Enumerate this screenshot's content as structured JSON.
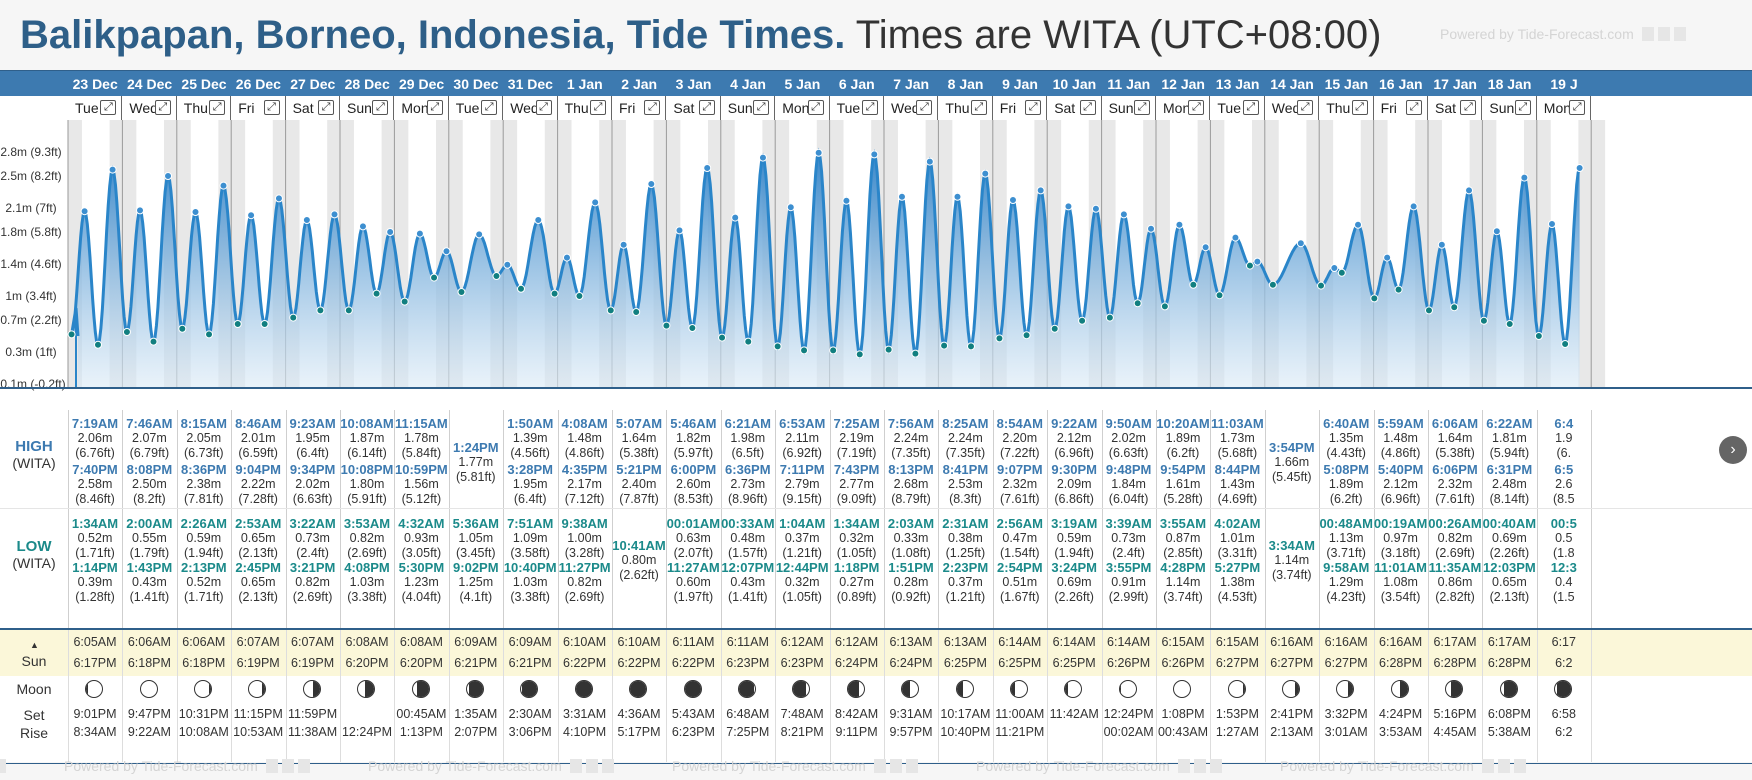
{
  "header": {
    "place": "Balikpapan, Borneo, Indonesia, Tide Times.",
    "tz_note": "Times are WITA (UTC+08:00)",
    "powered": "Powered by Tide-Forecast.com",
    "powered_bottom": "Powered by Tide-Forecast.com"
  },
  "colors": {
    "brand": "#2e5f88",
    "datebar": "#3d7ab0",
    "high": "#3d7ab0",
    "low": "#1b8a8a",
    "water": "#3f8ccc",
    "sunrow": "#fbf7d9"
  },
  "labels": {
    "high": "HIGH",
    "low": "LOW",
    "tz": "(WITA)",
    "sun": "Sun",
    "moon": "Moon",
    "set": "Set",
    "rise": "Rise"
  },
  "dates": [
    "23 Dec",
    "24 Dec",
    "25 Dec",
    "26 Dec",
    "27 Dec",
    "28 Dec",
    "29 Dec",
    "30 Dec",
    "31 Dec",
    "1 Jan",
    "2 Jan",
    "3 Jan",
    "4 Jan",
    "5 Jan",
    "6 Jan",
    "7 Jan",
    "8 Jan",
    "9 Jan",
    "10 Jan",
    "11 Jan",
    "12 Jan",
    "13 Jan",
    "14 Jan",
    "15 Jan",
    "16 Jan",
    "17 Jan",
    "18 Jan",
    "19 J"
  ],
  "weekdays": [
    "Tue",
    "Wed",
    "Thu",
    "Fri",
    "Sat",
    "Sun",
    "Mon",
    "Tue",
    "Wed",
    "Thu",
    "Fri",
    "Sat",
    "Sun",
    "Mon",
    "Tue",
    "Wed",
    "Thu",
    "Fri",
    "Sat",
    "Sun",
    "Mon",
    "Tue",
    "Wed",
    "Thu",
    "Fri",
    "Sat",
    "Sun",
    "Mon"
  ],
  "chart_data": {
    "type": "area",
    "ylabel_ticks": [
      "2.8m (9.3ft)",
      "2.5m (8.2ft)",
      "2.1m (7ft)",
      "1.8m (5.8ft)",
      "1.4m (4.6ft)",
      "1m (3.4ft)",
      "0.7m (2.2ft)",
      "0.3m (1ft)",
      "-0.1m (-0.2ft)"
    ],
    "y_tick_values": [
      2.8,
      2.5,
      2.1,
      1.8,
      1.4,
      1.0,
      0.7,
      0.3,
      -0.1
    ],
    "ylim": [
      -0.1,
      3.1
    ],
    "units": "m",
    "days": [
      {
        "high": [
          [
            "7:19AM",
            "2.06m",
            "(6.76ft)",
            7.32
          ],
          [
            "7:40PM",
            "2.58m",
            "(8.46ft)",
            19.67
          ]
        ],
        "low": [
          [
            "1:34AM",
            "0.52m",
            "(1.71ft)",
            1.57
          ],
          [
            "1:14PM",
            "0.39m",
            "(1.28ft)",
            13.23
          ]
        ]
      },
      {
        "high": [
          [
            "7:46AM",
            "2.07m",
            "(6.79ft)",
            7.77
          ],
          [
            "8:08PM",
            "2.50m",
            "(8.2ft)",
            20.13
          ]
        ],
        "low": [
          [
            "2:00AM",
            "0.55m",
            "(1.79ft)",
            2.0
          ],
          [
            "1:43PM",
            "0.43m",
            "(1.41ft)",
            13.72
          ]
        ]
      },
      {
        "high": [
          [
            "8:15AM",
            "2.05m",
            "(6.73ft)",
            8.25
          ],
          [
            "8:36PM",
            "2.38m",
            "(7.81ft)",
            20.6
          ]
        ],
        "low": [
          [
            "2:26AM",
            "0.59m",
            "(1.94ft)",
            2.43
          ],
          [
            "2:13PM",
            "0.52m",
            "(1.71ft)",
            14.22
          ]
        ]
      },
      {
        "high": [
          [
            "8:46AM",
            "2.01m",
            "(6.59ft)",
            8.77
          ],
          [
            "9:04PM",
            "2.22m",
            "(7.28ft)",
            21.07
          ]
        ],
        "low": [
          [
            "2:53AM",
            "0.65m",
            "(2.13ft)",
            2.88
          ],
          [
            "2:45PM",
            "0.65m",
            "(2.13ft)",
            14.75
          ]
        ]
      },
      {
        "high": [
          [
            "9:23AM",
            "1.95m",
            "(6.4ft)",
            9.38
          ],
          [
            "9:34PM",
            "2.02m",
            "(6.63ft)",
            21.57
          ]
        ],
        "low": [
          [
            "3:22AM",
            "0.73m",
            "(2.4ft)",
            3.37
          ],
          [
            "3:21PM",
            "0.82m",
            "(2.69ft)",
            15.35
          ]
        ]
      },
      {
        "high": [
          [
            "10:08AM",
            "1.87m",
            "(6.14ft)",
            10.13
          ],
          [
            "10:08PM",
            "1.80m",
            "(5.91ft)",
            22.13
          ]
        ],
        "low": [
          [
            "3:53AM",
            "0.82m",
            "(2.69ft)",
            3.88
          ],
          [
            "4:08PM",
            "1.03m",
            "(3.38ft)",
            16.13
          ]
        ]
      },
      {
        "high": [
          [
            "11:15AM",
            "1.78m",
            "(5.84ft)",
            11.25
          ],
          [
            "10:59PM",
            "1.56m",
            "(5.12ft)",
            22.98
          ]
        ],
        "low": [
          [
            "4:32AM",
            "0.93m",
            "(3.05ft)",
            4.53
          ],
          [
            "5:30PM",
            "1.23m",
            "(4.04ft)",
            17.5
          ]
        ]
      },
      {
        "high": [
          [
            "1:24PM",
            "1.77m",
            "(5.81ft)",
            13.4
          ]
        ],
        "low": [
          [
            "5:36AM",
            "1.05m",
            "(3.45ft)",
            5.6
          ],
          [
            "9:02PM",
            "1.25m",
            "(4.1ft)",
            21.03
          ]
        ]
      },
      {
        "high": [
          [
            "1:50AM",
            "1.39m",
            "(4.56ft)",
            1.83
          ],
          [
            "3:28PM",
            "1.95m",
            "(6.4ft)",
            15.47
          ]
        ],
        "low": [
          [
            "7:51AM",
            "1.09m",
            "(3.58ft)",
            7.85
          ],
          [
            "10:40PM",
            "1.03m",
            "(3.38ft)",
            22.67
          ]
        ]
      },
      {
        "high": [
          [
            "4:08AM",
            "1.48m",
            "(4.86ft)",
            4.13
          ],
          [
            "4:35PM",
            "2.17m",
            "(7.12ft)",
            16.58
          ]
        ],
        "low": [
          [
            "9:38AM",
            "1.00m",
            "(3.28ft)",
            9.63
          ],
          [
            "11:27PM",
            "0.82m",
            "(2.69ft)",
            23.45
          ]
        ]
      },
      {
        "high": [
          [
            "5:07AM",
            "1.64m",
            "(5.38ft)",
            5.12
          ],
          [
            "5:21PM",
            "2.40m",
            "(7.87ft)",
            17.35
          ]
        ],
        "low": [
          [
            "10:41AM",
            "0.80m",
            "(2.62ft)",
            10.68
          ]
        ]
      },
      {
        "high": [
          [
            "5:46AM",
            "1.82m",
            "(5.97ft)",
            5.77
          ],
          [
            "6:00PM",
            "2.60m",
            "(8.53ft)",
            18.0
          ]
        ],
        "low": [
          [
            "00:01AM",
            "0.63m",
            "(2.07ft)",
            0.02
          ],
          [
            "11:27AM",
            "0.60m",
            "(1.97ft)",
            11.45
          ]
        ]
      },
      {
        "high": [
          [
            "6:21AM",
            "1.98m",
            "(6.5ft)",
            6.35
          ],
          [
            "6:36PM",
            "2.73m",
            "(8.96ft)",
            18.6
          ]
        ],
        "low": [
          [
            "00:33AM",
            "0.48m",
            "(1.57ft)",
            0.55
          ],
          [
            "12:07PM",
            "0.43m",
            "(1.41ft)",
            12.12
          ]
        ]
      },
      {
        "high": [
          [
            "6:53AM",
            "2.11m",
            "(6.92ft)",
            6.88
          ],
          [
            "7:11PM",
            "2.79m",
            "(9.15ft)",
            19.18
          ]
        ],
        "low": [
          [
            "1:04AM",
            "0.37m",
            "(1.21ft)",
            1.07
          ],
          [
            "12:44PM",
            "0.32m",
            "(1.05ft)",
            12.73
          ]
        ]
      },
      {
        "high": [
          [
            "7:25AM",
            "2.19m",
            "(7.19ft)",
            7.42
          ],
          [
            "7:43PM",
            "2.77m",
            "(9.09ft)",
            19.72
          ]
        ],
        "low": [
          [
            "1:34AM",
            "0.32m",
            "(1.05ft)",
            1.57
          ],
          [
            "1:18PM",
            "0.27m",
            "(0.89ft)",
            13.3
          ]
        ]
      },
      {
        "high": [
          [
            "7:56AM",
            "2.24m",
            "(7.35ft)",
            7.93
          ],
          [
            "8:13PM",
            "2.68m",
            "(8.79ft)",
            20.22
          ]
        ],
        "low": [
          [
            "2:03AM",
            "0.33m",
            "(1.08ft)",
            2.05
          ],
          [
            "1:51PM",
            "0.28m",
            "(0.92ft)",
            13.85
          ]
        ]
      },
      {
        "high": [
          [
            "8:25AM",
            "2.24m",
            "(7.35ft)",
            8.42
          ],
          [
            "8:41PM",
            "2.53m",
            "(8.3ft)",
            20.68
          ]
        ],
        "low": [
          [
            "2:31AM",
            "0.38m",
            "(1.25ft)",
            2.52
          ],
          [
            "2:23PM",
            "0.37m",
            "(1.21ft)",
            14.38
          ]
        ]
      },
      {
        "high": [
          [
            "8:54AM",
            "2.20m",
            "(7.22ft)",
            8.9
          ],
          [
            "9:07PM",
            "2.32m",
            "(7.61ft)",
            21.12
          ]
        ],
        "low": [
          [
            "2:56AM",
            "0.47m",
            "(1.54ft)",
            2.93
          ],
          [
            "2:54PM",
            "0.51m",
            "(1.67ft)",
            14.9
          ]
        ]
      },
      {
        "high": [
          [
            "9:22AM",
            "2.12m",
            "(6.96ft)",
            9.37
          ],
          [
            "9:30PM",
            "2.09m",
            "(6.86ft)",
            21.5
          ]
        ],
        "low": [
          [
            "3:19AM",
            "0.59m",
            "(1.94ft)",
            3.32
          ],
          [
            "3:24PM",
            "0.69m",
            "(2.26ft)",
            15.4
          ]
        ]
      },
      {
        "high": [
          [
            "9:50AM",
            "2.02m",
            "(6.63ft)",
            9.83
          ],
          [
            "9:48PM",
            "1.84m",
            "(6.04ft)",
            21.8
          ]
        ],
        "low": [
          [
            "3:39AM",
            "0.73m",
            "(2.4ft)",
            3.65
          ],
          [
            "3:55PM",
            "0.91m",
            "(2.99ft)",
            15.92
          ]
        ]
      },
      {
        "high": [
          [
            "10:20AM",
            "1.89m",
            "(6.2ft)",
            10.33
          ],
          [
            "9:54PM",
            "1.61m",
            "(5.28ft)",
            21.9
          ]
        ],
        "low": [
          [
            "3:55AM",
            "0.87m",
            "(2.85ft)",
            3.92
          ],
          [
            "4:28PM",
            "1.14m",
            "(3.74ft)",
            16.47
          ]
        ]
      },
      {
        "high": [
          [
            "11:03AM",
            "1.73m",
            "(5.68ft)",
            11.05
          ],
          [
            "8:44PM",
            "1.43m",
            "(4.69ft)",
            20.73
          ]
        ],
        "low": [
          [
            "4:02AM",
            "1.01m",
            "(3.31ft)",
            4.03
          ],
          [
            "5:27PM",
            "1.38m",
            "(4.53ft)",
            17.45
          ]
        ]
      },
      {
        "high": [
          [
            "3:54PM",
            "1.66m",
            "(5.45ft)",
            15.9
          ]
        ],
        "low": [
          [
            "3:34AM",
            "1.14m",
            "(3.74ft)",
            3.57
          ]
        ]
      },
      {
        "high": [
          [
            "6:40AM",
            "1.35m",
            "(4.43ft)",
            6.67
          ],
          [
            "5:08PM",
            "1.89m",
            "(6.2ft)",
            17.13
          ]
        ],
        "low": [
          [
            "00:48AM",
            "1.13m",
            "(3.71ft)",
            0.8
          ],
          [
            "9:58AM",
            "1.29m",
            "(4.23ft)",
            9.97
          ]
        ]
      },
      {
        "high": [
          [
            "5:59AM",
            "1.48m",
            "(4.86ft)",
            5.98
          ],
          [
            "5:40PM",
            "2.12m",
            "(6.96ft)",
            17.67
          ]
        ],
        "low": [
          [
            "00:19AM",
            "0.97m",
            "(3.18ft)",
            0.32
          ],
          [
            "11:01AM",
            "1.08m",
            "(3.54ft)",
            11.02
          ]
        ]
      },
      {
        "high": [
          [
            "6:06AM",
            "1.64m",
            "(5.38ft)",
            6.1
          ],
          [
            "6:06PM",
            "2.32m",
            "(7.61ft)",
            18.1
          ]
        ],
        "low": [
          [
            "00:26AM",
            "0.82m",
            "(2.69ft)",
            0.43
          ],
          [
            "11:35AM",
            "0.86m",
            "(2.82ft)",
            11.58
          ]
        ]
      },
      {
        "high": [
          [
            "6:22AM",
            "1.81m",
            "(5.94ft)",
            6.37
          ],
          [
            "6:31PM",
            "2.48m",
            "(8.14ft)",
            18.52
          ]
        ],
        "low": [
          [
            "00:40AM",
            "0.69m",
            "(2.26ft)",
            0.67
          ],
          [
            "12:03PM",
            "0.65m",
            "(2.13ft)",
            12.05
          ]
        ]
      },
      {
        "high": [
          [
            "6:4",
            "1.9",
            "(6.",
            6.7
          ],
          [
            "6:5",
            "2.6",
            "(8.5",
            18.9
          ]
        ],
        "low": [
          [
            "00:5",
            "0.5",
            "(1.8",
            0.9
          ],
          [
            "12:3",
            "0.4",
            "(1.5",
            12.5
          ]
        ]
      }
    ]
  },
  "sun": {
    "rise": [
      "6:05AM",
      "6:06AM",
      "6:06AM",
      "6:07AM",
      "6:07AM",
      "6:08AM",
      "6:08AM",
      "6:09AM",
      "6:09AM",
      "6:10AM",
      "6:10AM",
      "6:11AM",
      "6:11AM",
      "6:12AM",
      "6:12AM",
      "6:13AM",
      "6:13AM",
      "6:14AM",
      "6:14AM",
      "6:14AM",
      "6:15AM",
      "6:15AM",
      "6:16AM",
      "6:16AM",
      "6:16AM",
      "6:17AM",
      "6:17AM",
      "6:17"
    ],
    "set": [
      "6:17PM",
      "6:18PM",
      "6:18PM",
      "6:19PM",
      "6:19PM",
      "6:20PM",
      "6:20PM",
      "6:21PM",
      "6:21PM",
      "6:22PM",
      "6:22PM",
      "6:22PM",
      "6:23PM",
      "6:23PM",
      "6:24PM",
      "6:24PM",
      "6:25PM",
      "6:25PM",
      "6:25PM",
      "6:26PM",
      "6:26PM",
      "6:27PM",
      "6:27PM",
      "6:27PM",
      "6:28PM",
      "6:28PM",
      "6:28PM",
      "6:2"
    ]
  },
  "moon": {
    "phase": [
      0.45,
      0.5,
      0.55,
      0.6,
      0.68,
      0.75,
      0.82,
      0.88,
      0.93,
      0.97,
      1.0,
      0.03,
      0.08,
      0.14,
      0.2,
      0.27,
      0.33,
      0.39,
      0.43,
      0.47,
      0.5,
      0.55,
      0.6,
      0.66,
      0.73,
      0.8,
      0.86,
      0.9
    ],
    "set": [
      "9:01PM",
      "9:47PM",
      "10:31PM",
      "11:15PM",
      "11:59PM",
      "",
      "00:45AM",
      "1:35AM",
      "2:30AM",
      "3:31AM",
      "4:36AM",
      "5:43AM",
      "6:48AM",
      "7:48AM",
      "8:42AM",
      "9:31AM",
      "10:17AM",
      "11:00AM",
      "11:42AM",
      "12:24PM",
      "1:08PM",
      "1:53PM",
      "2:41PM",
      "3:32PM",
      "4:24PM",
      "5:16PM",
      "6:08PM",
      "6:58"
    ],
    "rise": [
      "8:34AM",
      "9:22AM",
      "10:08AM",
      "10:53AM",
      "11:38AM",
      "12:24PM",
      "1:13PM",
      "2:07PM",
      "3:06PM",
      "4:10PM",
      "5:17PM",
      "6:23PM",
      "7:25PM",
      "8:21PM",
      "9:11PM",
      "9:57PM",
      "10:40PM",
      "11:21PM",
      "",
      "00:02AM",
      "00:43AM",
      "1:27AM",
      "2:13AM",
      "3:01AM",
      "3:53AM",
      "4:45AM",
      "5:38AM",
      "6:2"
    ]
  }
}
